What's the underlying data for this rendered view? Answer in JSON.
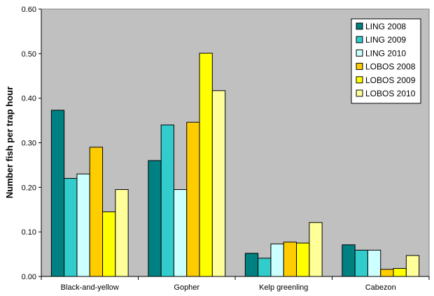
{
  "chart_data": {
    "type": "bar",
    "ylabel": "Number fish per trap hour",
    "ylim": [
      0,
      0.6
    ],
    "yticks": [
      "0.00",
      "0.10",
      "0.20",
      "0.30",
      "0.40",
      "0.50",
      "0.60"
    ],
    "ytick_values": [
      0,
      0.1,
      0.2,
      0.3,
      0.4,
      0.5,
      0.6
    ],
    "grid": false,
    "plot_background": "#c0c0c0",
    "legend_position": "top-right",
    "categories": [
      "Black-and-yellow",
      "Gopher",
      "Kelp greenling",
      "Cabezon"
    ],
    "series": [
      {
        "name": "LING 2008",
        "color": "#008080",
        "values": [
          0.373,
          0.26,
          0.052,
          0.071
        ]
      },
      {
        "name": "LING 2009",
        "color": "#33cccc",
        "values": [
          0.22,
          0.34,
          0.041,
          0.059
        ]
      },
      {
        "name": "LING 2010",
        "color": "#ccffff",
        "values": [
          0.23,
          0.195,
          0.073,
          0.059
        ]
      },
      {
        "name": "LOBOS 2008",
        "color": "#ffcc00",
        "values": [
          0.29,
          0.346,
          0.077,
          0.016
        ]
      },
      {
        "name": "LOBOS 2009",
        "color": "#ffff00",
        "values": [
          0.145,
          0.501,
          0.075,
          0.018
        ]
      },
      {
        "name": "LOBOS 2010",
        "color": "#ffff99",
        "values": [
          0.195,
          0.417,
          0.121,
          0.047
        ]
      }
    ]
  }
}
